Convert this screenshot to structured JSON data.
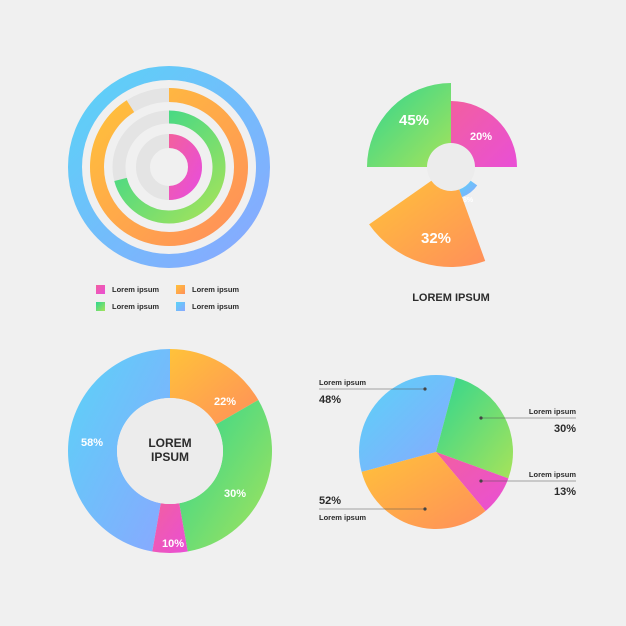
{
  "colors": {
    "pink": [
      "#f25fa0",
      "#e94fd6"
    ],
    "orange": [
      "#ffc23a",
      "#ff8f5a"
    ],
    "green": [
      "#2fd690",
      "#a6e35a"
    ],
    "blue": [
      "#5ad3f7",
      "#8aa7ff"
    ],
    "track": "#e4e4e4"
  },
  "chart_data": [
    {
      "type": "radial-bar",
      "title": "",
      "rings": [
        {
          "name": "Lorem ipsum",
          "color": "blue",
          "fraction": 1.0
        },
        {
          "name": "Lorem ipsum",
          "color": "orange",
          "fraction": 0.91
        },
        {
          "name": "Lorem ipsum",
          "color": "green",
          "fraction": 0.71
        },
        {
          "name": "Lorem ipsum",
          "color": "pink",
          "fraction": 0.5
        }
      ],
      "legend": [
        {
          "label": "Lorem ipsum",
          "color": "pink"
        },
        {
          "label": "Lorem ipsum",
          "color": "orange"
        },
        {
          "label": "Lorem ipsum",
          "color": "green"
        },
        {
          "label": "Lorem ipsum",
          "color": "blue"
        }
      ]
    },
    {
      "type": "pie",
      "title": "LOREM IPSUM",
      "slices": [
        {
          "label": "45%",
          "value": 45,
          "color": "green"
        },
        {
          "label": "20%",
          "value": 20,
          "color": "pink"
        },
        {
          "label": "8%",
          "value": 8,
          "color": "blue"
        },
        {
          "label": "32%",
          "value": 32,
          "color": "orange"
        }
      ]
    },
    {
      "type": "pie",
      "title": "LOREM IPSUM",
      "center_label": "LOREM IPSUM",
      "slices": [
        {
          "label": "58%",
          "value": 58,
          "color": "blue"
        },
        {
          "label": "22%",
          "value": 22,
          "color": "orange"
        },
        {
          "label": "30%",
          "value": 30,
          "color": "green"
        },
        {
          "label": "10%",
          "value": 10,
          "color": "pink"
        }
      ]
    },
    {
      "type": "pie",
      "slices": [
        {
          "label": "48%",
          "value": 48,
          "name": "Lorem ipsum",
          "color": "blue"
        },
        {
          "label": "30%",
          "value": 30,
          "name": "Lorem ipsum",
          "color": "green"
        },
        {
          "label": "13%",
          "value": 13,
          "name": "Lorem ipsum",
          "color": "pink"
        },
        {
          "label": "52%",
          "value": 52,
          "name": "Lorem ipsum",
          "color": "orange"
        }
      ]
    }
  ],
  "text": {
    "pie1_title": "LOREM IPSUM",
    "donut_center_line1": "LOREM",
    "donut_center_line2": "IPSUM"
  }
}
